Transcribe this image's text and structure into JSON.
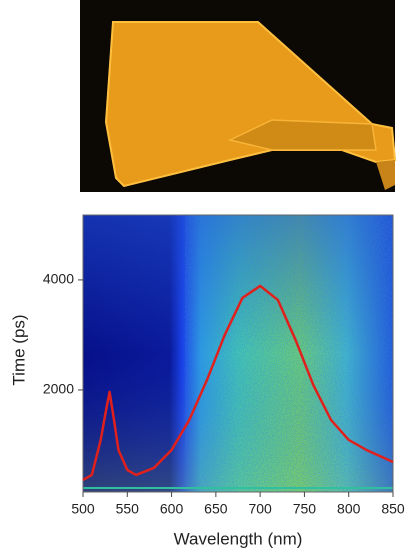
{
  "chart_data": {
    "type": "line",
    "x_label": "Wavelength (nm)",
    "y_label": "Time (ps)",
    "x": [
      500,
      510,
      520,
      525,
      530,
      535,
      540,
      550,
      560,
      580,
      600,
      620,
      640,
      660,
      680,
      700,
      720,
      740,
      760,
      780,
      800,
      820,
      850
    ],
    "series": [
      {
        "color": "#e0201c",
        "values": [
          364,
          455,
          1091,
          1545,
          1964,
          1455,
          909,
          545,
          455,
          582,
          909,
          1455,
          2182,
          3000,
          3673,
          3891,
          3636,
          2909,
          2091,
          1455,
          1091,
          909,
          691
        ]
      }
    ],
    "xlim": [
      500,
      850
    ],
    "xticks": [
      500,
      550,
      600,
      650,
      700,
      750,
      800,
      850
    ],
    "ylim": [
      145,
      5180
    ],
    "yticks": [
      2000,
      4000
    ]
  }
}
